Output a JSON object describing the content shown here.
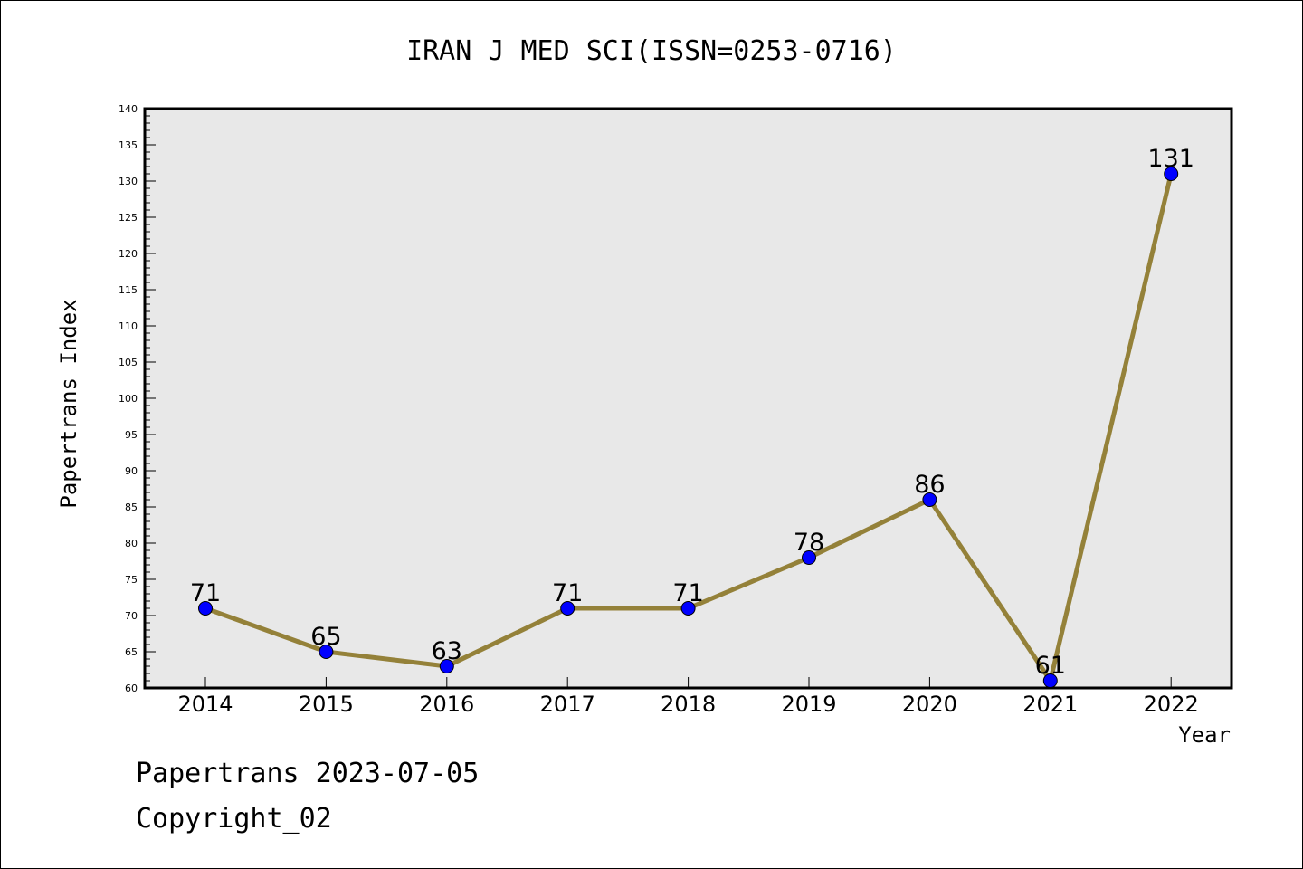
{
  "chart_data": {
    "type": "line",
    "title": "IRAN J MED SCI(ISSN=0253-0716)",
    "xlabel": "Year",
    "ylabel": "Papertrans Index",
    "categories": [
      "2014",
      "2015",
      "2016",
      "2017",
      "2018",
      "2019",
      "2020",
      "2021",
      "2022"
    ],
    "values": [
      71,
      65,
      63,
      71,
      71,
      78,
      86,
      61,
      131
    ],
    "ylim": [
      60,
      140
    ],
    "ytick_step": 5,
    "grid": false,
    "line_color": "#948139",
    "marker_color": "#0000ff",
    "plot_background": "#e8e8e8"
  },
  "footer": {
    "line1": "Papertrans 2023-07-05",
    "line2": "Copyright_02"
  }
}
